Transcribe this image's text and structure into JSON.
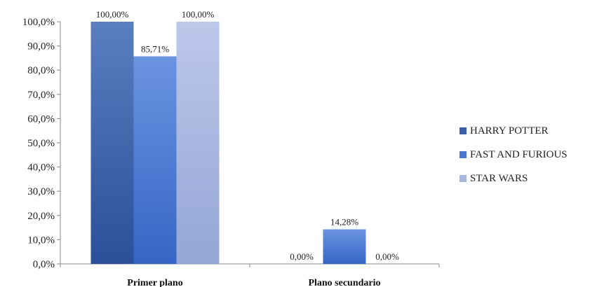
{
  "chart_data": {
    "type": "bar",
    "title": "",
    "xlabel": "",
    "ylabel": "",
    "ylim": [
      0,
      100
    ],
    "y_ticks": [
      "0,0%",
      "10,0%",
      "20,0%",
      "30,0%",
      "40,0%",
      "50,0%",
      "60,0%",
      "70,0%",
      "80,0%",
      "90,0%",
      "100,0%"
    ],
    "categories": [
      "Primer plano",
      "Plano secundario"
    ],
    "series": [
      {
        "name": "HARRY POTTER",
        "color": "#3b5fa8",
        "values": [
          100,
          0
        ],
        "labels": [
          "100,00%",
          "0,00%"
        ]
      },
      {
        "name": "FAST AND FURIOUS",
        "color": "#4a78d0",
        "values": [
          85.71,
          14.28
        ],
        "labels": [
          "85,71%",
          "14,28%"
        ]
      },
      {
        "name": "STAR WARS",
        "color": "#a9b7df",
        "values": [
          100,
          0
        ],
        "labels": [
          "100,00%",
          "0,00%"
        ]
      }
    ],
    "legend_position": "right",
    "grid": false
  }
}
